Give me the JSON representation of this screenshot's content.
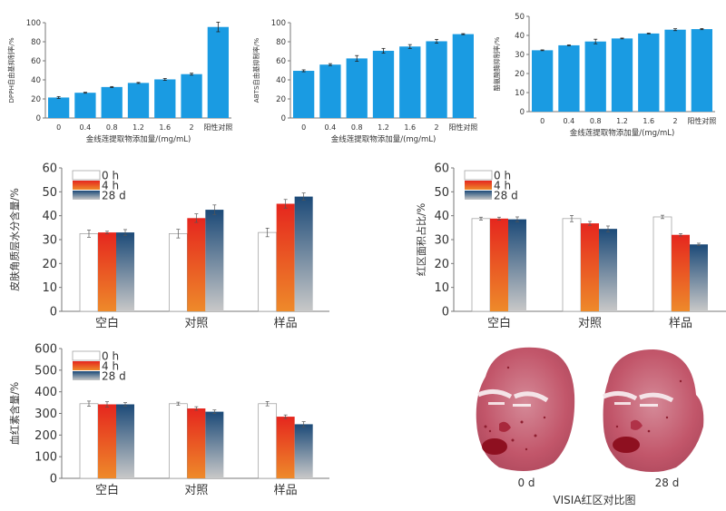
{
  "chart_data": [
    {
      "id": "dpph",
      "type": "bar",
      "title": "",
      "ylabel": "DPPH自由基抑制率/%",
      "xlabel": "金线莲提取物添加量/(mg/mL)",
      "categories": [
        "0",
        "0.4",
        "0.8",
        "1.2",
        "1.6",
        "2",
        "阳性对照"
      ],
      "values": [
        21.5,
        26.5,
        32.5,
        36.8,
        40.5,
        46,
        95.5
      ],
      "errors": [
        1,
        0.5,
        0.5,
        0.5,
        1,
        1,
        5
      ],
      "ylim": [
        0,
        100
      ],
      "yticks": [
        0,
        20,
        40,
        60,
        80,
        100
      ],
      "color": "#1a9be2",
      "grid": false
    },
    {
      "id": "abts",
      "type": "bar",
      "title": "",
      "ylabel": "ABTS自由基抑制率/%",
      "xlabel": "金线莲提取物添加量/(mg/mL)",
      "categories": [
        "0",
        "0.4",
        "0.8",
        "1.2",
        "1.6",
        "2",
        "阳性对照"
      ],
      "values": [
        49.5,
        56,
        62.5,
        70.5,
        75,
        80.5,
        88
      ],
      "errors": [
        1,
        1,
        3,
        2.5,
        2,
        2,
        0.5
      ],
      "ylim": [
        0,
        100
      ],
      "yticks": [
        0,
        20,
        40,
        60,
        80,
        100
      ],
      "color": "#1a9be2",
      "grid": false
    },
    {
      "id": "tyrosinase",
      "type": "bar",
      "title": "",
      "ylabel": "酪氨酸酶抑制率/%",
      "xlabel": "金线莲提取物添加量/(mg/mL)",
      "categories": [
        "0",
        "0.4",
        "0.8",
        "1.2",
        "1.6",
        "2",
        "阳性对照"
      ],
      "values": [
        32.2,
        34.8,
        36.8,
        38.4,
        41,
        43,
        43.3
      ],
      "errors": [
        0.2,
        0.2,
        1.2,
        0.2,
        0.2,
        0.5,
        0.3
      ],
      "ylim": [
        0,
        50
      ],
      "yticks": [
        0,
        10,
        20,
        30,
        40,
        50
      ],
      "color": "#1a9be2",
      "grid": false
    },
    {
      "id": "moisture",
      "type": "bar",
      "title": "",
      "ylabel": "皮肤角质层水分含量/%",
      "xlabel": "",
      "categories": [
        "空白",
        "对照",
        "样品"
      ],
      "series": [
        {
          "name": "0 h",
          "values": [
            32.5,
            32.5,
            33
          ],
          "errors": [
            1.5,
            1.8,
            1.8
          ]
        },
        {
          "name": "4 h",
          "values": [
            33,
            39,
            45
          ],
          "errors": [
            0.5,
            1.8,
            1.8
          ]
        },
        {
          "name": "28 d",
          "values": [
            33,
            42.5,
            48
          ],
          "errors": [
            1.2,
            2,
            1.5
          ]
        }
      ],
      "ylim": [
        0,
        60
      ],
      "yticks": [
        0,
        10,
        20,
        30,
        40,
        50,
        60
      ],
      "legend": "top-left",
      "grid": false
    },
    {
      "id": "red-area",
      "type": "bar",
      "title": "",
      "ylabel": "红区面积占比/%",
      "xlabel": "",
      "categories": [
        "空白",
        "对照",
        "样品"
      ],
      "series": [
        {
          "name": "0 h",
          "values": [
            38.8,
            38.8,
            39.5
          ],
          "errors": [
            0.6,
            1.3,
            0.7
          ]
        },
        {
          "name": "4 h",
          "values": [
            38.8,
            36.8,
            32
          ],
          "errors": [
            0.6,
            0.8,
            0.5
          ]
        },
        {
          "name": "28 d",
          "values": [
            38.5,
            34.5,
            28
          ],
          "errors": [
            1,
            1.2,
            0.5
          ]
        }
      ],
      "ylim": [
        0,
        60
      ],
      "yticks": [
        0,
        10,
        20,
        30,
        40,
        50,
        60
      ],
      "legend": "top-left",
      "grid": false
    },
    {
      "id": "hemoglobin",
      "type": "bar",
      "title": "",
      "ylabel": "血红素含量/%",
      "xlabel": "",
      "categories": [
        "空白",
        "对照",
        "样品"
      ],
      "series": [
        {
          "name": "0 h",
          "values": [
            345,
            345,
            345
          ],
          "errors": [
            12,
            7,
            10
          ]
        },
        {
          "name": "4 h",
          "values": [
            342,
            323,
            285
          ],
          "errors": [
            12,
            8,
            8
          ]
        },
        {
          "name": "28 d",
          "values": [
            342,
            308,
            250
          ],
          "errors": [
            8,
            8,
            12
          ]
        }
      ],
      "ylim": [
        0,
        600
      ],
      "yticks": [
        0,
        100,
        200,
        300,
        400,
        500,
        600
      ],
      "legend": "top-left",
      "grid": false
    }
  ],
  "series_styles": {
    "0 h": {
      "fill": "#ffffff",
      "stroke": "#999999"
    },
    "4 h": {
      "top": "#e5261e",
      "bottom": "#ee8a2a"
    },
    "28 d": {
      "top": "#1c4a78",
      "bottom": "#c8c8c8"
    }
  },
  "visia": {
    "caption": "VISIA红区对比图",
    "labels": [
      "0 d",
      "28 d"
    ],
    "face_color": "#c2566a"
  }
}
